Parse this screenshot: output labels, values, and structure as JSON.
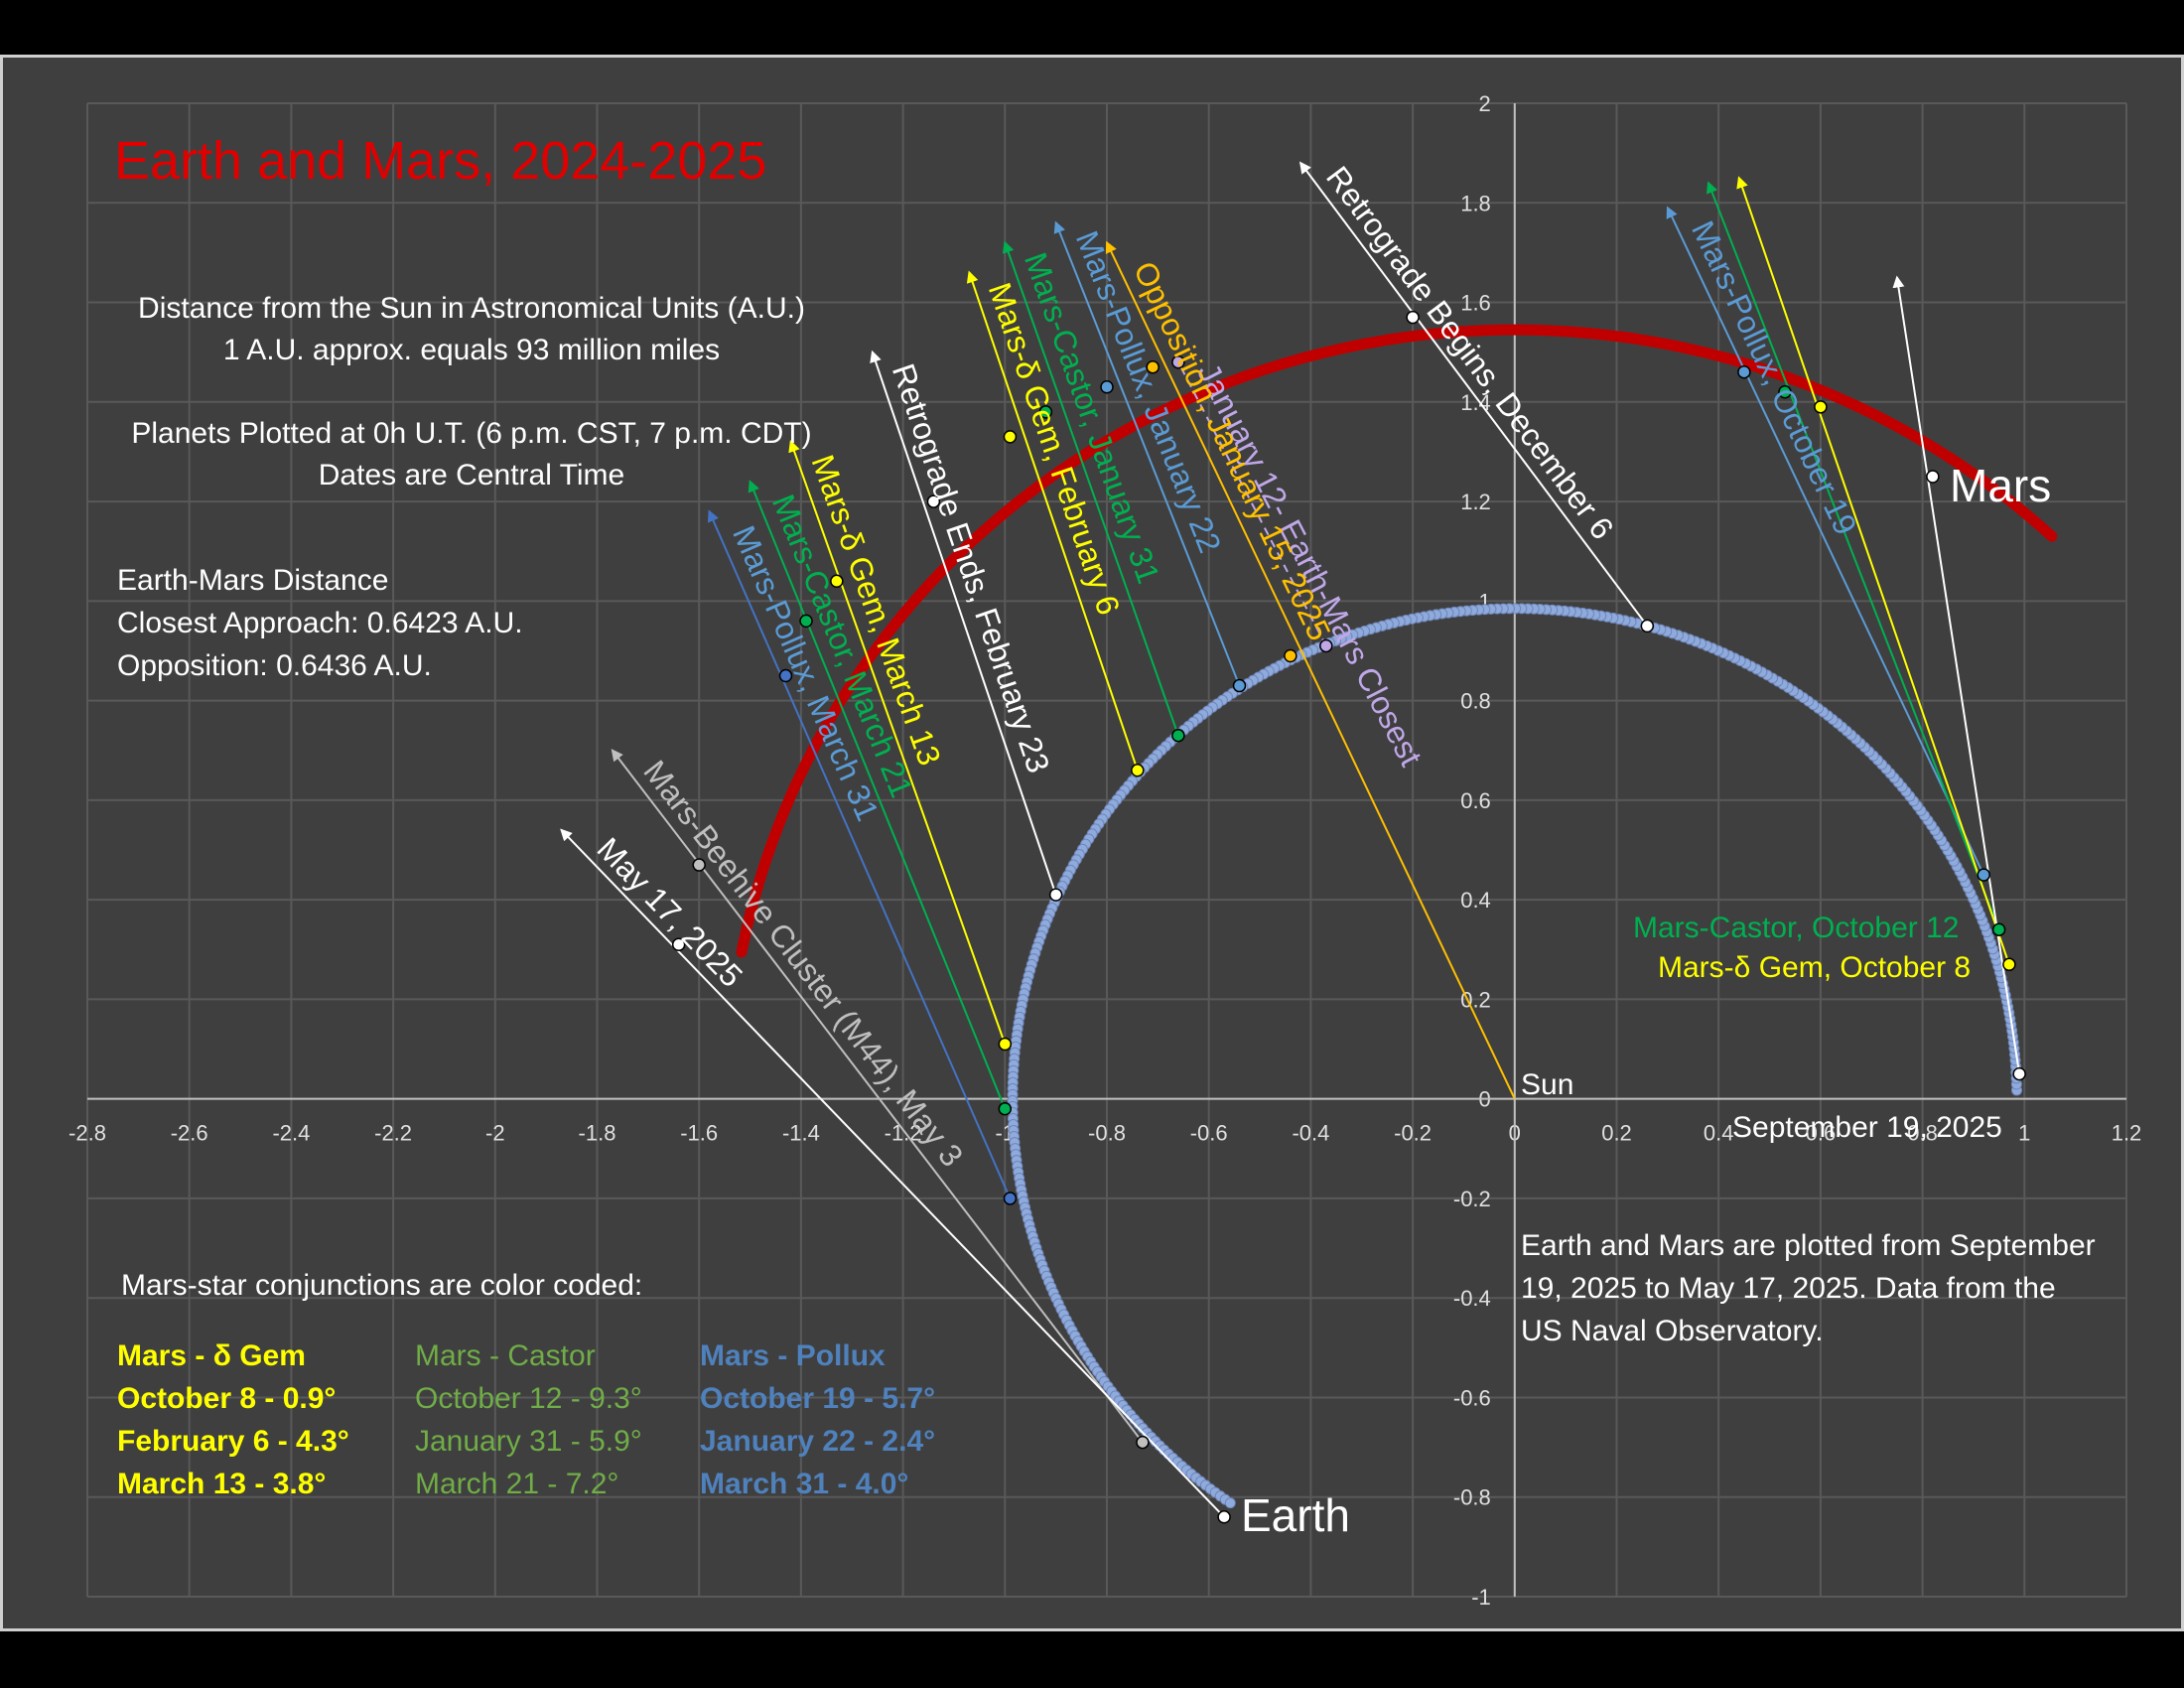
{
  "chart_data": {
    "type": "scatter",
    "title": "Earth and Mars, 2024-2025",
    "xlim": [
      -2.8,
      1.2
    ],
    "ylim": [
      -1,
      2
    ],
    "x_ticks": [
      "-2.8",
      "-2.6",
      "-2.4",
      "-2.2",
      "-2",
      "-1.8",
      "-1.6",
      "-1.4",
      "-1.2",
      "-1",
      "-0.8",
      "-0.6",
      "-0.4",
      "-0.2",
      "0",
      "0.2",
      "0.4",
      "0.6",
      "0.8",
      "1",
      "1.2"
    ],
    "y_ticks": [
      "-1",
      "-0.8",
      "-0.6",
      "-0.4",
      "-0.2",
      "0",
      "0.2",
      "0.4",
      "0.6",
      "0.8",
      "1",
      "1.2",
      "1.4",
      "1.6",
      "1.8",
      "2"
    ],
    "grid": true,
    "series": [
      {
        "name": "Earth",
        "color": "#8faadc",
        "orbit_radius": 0.985,
        "start_angle_deg": 1,
        "end_angle_deg": 236
      },
      {
        "name": "Mars",
        "color": "#c00000",
        "orbit_radius": 1.545,
        "start_angle_deg": 47,
        "end_angle_deg": 169
      }
    ],
    "bodies": [
      {
        "name": "Sun",
        "x": 0,
        "y": 0
      },
      {
        "name": "Mars",
        "x": 0.82,
        "y": 1.25
      },
      {
        "name": "Earth",
        "x": -0.57,
        "y": -0.84
      }
    ],
    "sight_lines": [
      {
        "label": "Retrograde Begins, December 6",
        "color": "#ffffff",
        "dashed": false,
        "earth": [
          0.26,
          0.95
        ],
        "mars": [
          -0.2,
          1.57
        ],
        "tip": [
          -0.42,
          1.88
        ]
      },
      {
        "label": "Retrograde Ends, February 23",
        "color": "#ffffff",
        "dashed": false,
        "earth": [
          -0.9,
          0.41
        ],
        "mars": [
          -1.14,
          1.2
        ],
        "tip": [
          -1.26,
          1.5
        ]
      },
      {
        "label": "January 12- Earth-Mars Closest",
        "color": "#c0a8e8",
        "dashed": true,
        "earth": [
          -0.37,
          0.91
        ],
        "mars": [
          -0.66,
          1.48
        ],
        "tip": null
      },
      {
        "label": "Opposition, January 15, 2025",
        "color": "#ffc000",
        "dashed": false,
        "earth": [
          -0.44,
          0.89
        ],
        "mars": [
          -0.71,
          1.47
        ],
        "tip": [
          -0.8,
          1.72
        ],
        "extend_to": [
          0,
          0
        ]
      },
      {
        "label": "Mars-Pollux, January 22",
        "color": "#5b9bd5",
        "dashed": false,
        "earth": [
          -0.54,
          0.83
        ],
        "mars": [
          -0.8,
          1.43
        ],
        "tip": [
          -0.9,
          1.76
        ]
      },
      {
        "label": "Mars-Castor, January 31",
        "color": "#00b050",
        "dashed": false,
        "earth": [
          -0.66,
          0.73
        ],
        "mars": [
          -0.92,
          1.38
        ],
        "tip": [
          -1.0,
          1.72
        ]
      },
      {
        "label": "Mars-δ Gem, February 6",
        "color": "#ffff00",
        "dashed": false,
        "earth": [
          -0.74,
          0.66
        ],
        "mars": [
          -0.99,
          1.33
        ],
        "tip": [
          -1.07,
          1.66
        ]
      },
      {
        "label": "Mars-δ Gem, March 13",
        "color": "#ffff00",
        "dashed": false,
        "earth": [
          -1.0,
          0.11
        ],
        "mars": [
          -1.33,
          1.04
        ],
        "tip": [
          -1.42,
          1.32
        ]
      },
      {
        "label": "Mars-Castor, March 21",
        "color": "#00b050",
        "dashed": false,
        "earth": [
          -1.0,
          -0.02
        ],
        "mars": [
          -1.39,
          0.96
        ],
        "tip": [
          -1.5,
          1.24
        ]
      },
      {
        "label": "Mars-Pollux, March 31",
        "color": "#4472c4",
        "dashed": false,
        "earth": [
          -0.99,
          -0.2
        ],
        "mars": [
          -1.43,
          0.85
        ],
        "tip": [
          -1.58,
          1.18
        ]
      },
      {
        "label": "Mars-Beehive Cluster (M44), May 3",
        "color": "#bfbfbf",
        "dashed": false,
        "earth": [
          -0.73,
          -0.69
        ],
        "mars": [
          -1.6,
          0.47
        ],
        "tip": [
          -1.77,
          0.7
        ]
      },
      {
        "label": "May 17, 2025",
        "color": "#ffffff",
        "dashed": false,
        "earth": [
          -0.57,
          -0.84
        ],
        "mars": [
          -1.64,
          0.31
        ],
        "tip": [
          -1.87,
          0.54
        ]
      },
      {
        "label": "Mars-Pollux, October 19",
        "color": "#5b9bd5",
        "dashed": false,
        "earth": [
          0.92,
          0.45
        ],
        "mars": [
          0.45,
          1.46
        ],
        "tip": [
          0.3,
          1.79
        ]
      },
      {
        "label": "Mars-Castor, October 12",
        "color": "#00b050",
        "dashed": false,
        "earth": [
          0.95,
          0.34
        ],
        "mars": [
          0.53,
          1.42
        ],
        "tip": [
          0.38,
          1.84
        ]
      },
      {
        "label": "Mars-δ Gem, October 8",
        "color": "#ffff00",
        "dashed": false,
        "earth": [
          0.97,
          0.27
        ],
        "mars": [
          0.6,
          1.39
        ],
        "tip": [
          0.44,
          1.85
        ]
      },
      {
        "label": "September 19, 2025",
        "color": "#ffffff",
        "dashed": false,
        "earth": [
          0.99,
          0.05
        ],
        "mars": [
          0.82,
          1.25
        ],
        "tip": [
          0.75,
          1.65
        ]
      }
    ]
  },
  "labels": {
    "title": "Earth and Mars, 2024-2025",
    "info1_line1": "Distance from the Sun in Astronomical Units (A.U.)",
    "info1_line2": "1 A.U. approx. equals 93 million miles",
    "info2_line1": "Planets Plotted at 0h U.T. (6 p.m. CST, 7 p.m. CDT)",
    "info2_line2": "Dates are Central Time",
    "info3_line1": "Earth-Mars Distance",
    "info3_line2": "Closest Approach: 0.6423 A.U.",
    "info3_line3": "Opposition: 0.6436 A.U.",
    "sun": "Sun",
    "mars": "Mars",
    "earth": "Earth",
    "sept": "September 19, 2025",
    "castor_oct": "Mars-Castor, October 12",
    "dgem_oct": "Mars-δ Gem, October 8",
    "note_line1": "Earth and Mars are plotted from September",
    "note_line2": "19, 2025 to May 17, 2025.  Data from the",
    "note_line3": "US Naval  Observatory.",
    "legend_heading": "Mars-star conjunctions are color coded:"
  },
  "legend": {
    "dgem": {
      "color": "#ffff00",
      "rows": [
        "Mars - δ Gem",
        "October 8 - 0.9°",
        "February 6 -  4.3°",
        "March 13 - 3.8°"
      ]
    },
    "castor": {
      "color": "#70ad47",
      "rows": [
        "Mars - Castor",
        "October 12 - 9.3°",
        "January 31 - 5.9°",
        "March 21 - 7.2°"
      ]
    },
    "pollux": {
      "color": "#4f81bd",
      "rows": [
        "Mars - Pollux",
        "October 19 - 5.7°",
        "January 22 - 2.4°",
        "March 31 - 4.0°"
      ]
    }
  },
  "colors": {
    "title": "#e00000",
    "grid": "#595959",
    "axis": "#bfbfbf"
  }
}
